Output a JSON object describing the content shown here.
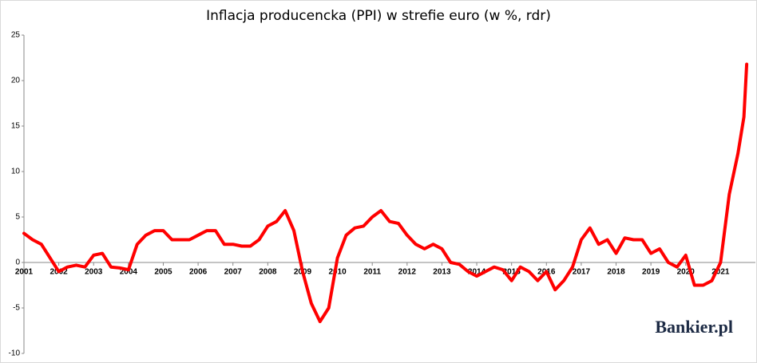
{
  "chart_data": {
    "type": "line",
    "title": "Inflacja producencka (PPI) w strefie euro (w %, rdr)",
    "logo": "Bankier.pl",
    "series": [
      {
        "name": "PPI",
        "color": "#ff0000",
        "x": [
          2001.0,
          2001.25,
          2001.5,
          2001.75,
          2002.0,
          2002.25,
          2002.5,
          2002.75,
          2003.0,
          2003.25,
          2003.5,
          2003.75,
          2004.0,
          2004.25,
          2004.5,
          2004.75,
          2005.0,
          2005.25,
          2005.5,
          2005.75,
          2006.0,
          2006.25,
          2006.5,
          2006.75,
          2007.0,
          2007.25,
          2007.5,
          2007.75,
          2008.0,
          2008.25,
          2008.5,
          2008.75,
          2009.0,
          2009.25,
          2009.5,
          2009.75,
          2010.0,
          2010.25,
          2010.5,
          2010.75,
          2011.0,
          2011.25,
          2011.5,
          2011.75,
          2012.0,
          2012.25,
          2012.5,
          2012.75,
          2013.0,
          2013.25,
          2013.5,
          2013.75,
          2014.0,
          2014.25,
          2014.5,
          2014.75,
          2015.0,
          2015.25,
          2015.5,
          2015.75,
          2016.0,
          2016.25,
          2016.5,
          2016.75,
          2017.0,
          2017.25,
          2017.5,
          2017.75,
          2018.0,
          2018.25,
          2018.5,
          2018.75,
          2019.0,
          2019.25,
          2019.5,
          2019.75,
          2020.0,
          2020.25,
          2020.5,
          2020.75,
          2021.0,
          2021.25,
          2021.5,
          2021.67,
          2021.75
        ],
        "values": [
          3.2,
          2.5,
          2.0,
          0.5,
          -1.0,
          -0.5,
          -0.3,
          -0.5,
          0.8,
          1.0,
          -0.5,
          -0.6,
          -0.8,
          2.0,
          3.0,
          3.5,
          3.5,
          2.5,
          2.5,
          2.5,
          3.0,
          3.5,
          3.5,
          2.0,
          2.0,
          1.8,
          1.8,
          2.5,
          4.0,
          4.5,
          5.7,
          3.5,
          -1.0,
          -4.5,
          -6.5,
          -5.0,
          0.5,
          3.0,
          3.8,
          4.0,
          5.0,
          5.7,
          4.5,
          4.3,
          3.0,
          2.0,
          1.5,
          2.0,
          1.5,
          0.0,
          -0.2,
          -1.0,
          -1.5,
          -1.0,
          -0.5,
          -0.8,
          -2.0,
          -0.5,
          -1.0,
          -2.0,
          -1.0,
          -3.0,
          -2.0,
          -0.5,
          2.5,
          3.8,
          2.0,
          2.5,
          1.0,
          2.7,
          2.5,
          2.5,
          1.0,
          1.5,
          0.0,
          -0.5,
          0.8,
          -2.5,
          -2.5,
          -2.0,
          0.0,
          7.5,
          12.0,
          16.0,
          21.8
        ]
      }
    ],
    "xlim": [
      2001,
      2022
    ],
    "xticks": [
      2001,
      2002,
      2003,
      2004,
      2005,
      2006,
      2007,
      2008,
      2009,
      2010,
      2011,
      2012,
      2013,
      2014,
      2015,
      2016,
      2017,
      2018,
      2019,
      2020,
      2021
    ],
    "ylim": [
      -10,
      25
    ],
    "yticks": [
      -10,
      -5,
      0,
      5,
      10,
      15,
      20,
      25
    ],
    "grid": false
  }
}
